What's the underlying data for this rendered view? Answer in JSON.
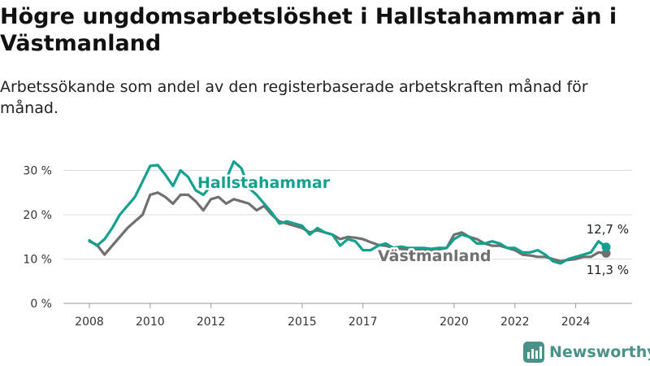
{
  "title": "Högre ungdomsarbetslöshet i Hallstahammar än i Västmanland",
  "subtitle": "Arbetssökande som andel av den registerbaserade arbetskraften månad för månad.",
  "brand": {
    "name": "Newsworthy",
    "icon": "newsworthy-logo-icon"
  },
  "colors": {
    "hallstahammar": "#14a08f",
    "vastmanland": "#707070",
    "grid": "#dcdcdc"
  },
  "chart_data": {
    "type": "line",
    "title": "Högre ungdomsarbetslöshet i Hallstahammar än i Västmanland",
    "subtitle": "Arbetssökande som andel av den registerbaserade arbetskraften månad för månad.",
    "xlabel": "",
    "ylabel": "",
    "x_range": [
      2008,
      2025
    ],
    "ylim": [
      0,
      33
    ],
    "y_ticks": [
      0,
      10,
      20,
      30
    ],
    "y_tick_labels": [
      "0 %",
      "10 %",
      "20 %",
      "30 %"
    ],
    "x_ticks": [
      2008,
      2010,
      2012,
      2015,
      2017,
      2020,
      2022,
      2024
    ],
    "x_tick_labels": [
      "2008",
      "2010",
      "2012",
      "2015",
      "2017",
      "2020",
      "2022",
      "2024"
    ],
    "grid": true,
    "legend": "inline labels",
    "series": [
      {
        "name": "Hallstahammar",
        "color": "#14a08f",
        "end_label": "12,7 %",
        "points": [
          [
            2008.0,
            14.2
          ],
          [
            2008.25,
            13.0
          ],
          [
            2008.5,
            14.5
          ],
          [
            2008.75,
            17.0
          ],
          [
            2009.0,
            20.0
          ],
          [
            2009.25,
            22.0
          ],
          [
            2009.5,
            24.0
          ],
          [
            2009.75,
            27.5
          ],
          [
            2010.0,
            31.0
          ],
          [
            2010.25,
            31.2
          ],
          [
            2010.5,
            29.0
          ],
          [
            2010.75,
            26.5
          ],
          [
            2011.0,
            30.0
          ],
          [
            2011.25,
            28.5
          ],
          [
            2011.5,
            25.5
          ],
          [
            2011.75,
            24.5
          ],
          [
            2012.0,
            26.5
          ],
          [
            2012.25,
            27.0
          ],
          [
            2012.5,
            28.0
          ],
          [
            2012.75,
            32.0
          ],
          [
            2013.0,
            30.5
          ],
          [
            2013.25,
            26.0
          ],
          [
            2013.5,
            24.5
          ],
          [
            2013.75,
            22.5
          ],
          [
            2014.0,
            20.5
          ],
          [
            2014.25,
            18.0
          ],
          [
            2014.5,
            18.5
          ],
          [
            2014.75,
            18.0
          ],
          [
            2015.0,
            17.5
          ],
          [
            2015.25,
            15.5
          ],
          [
            2015.5,
            17.0
          ],
          [
            2015.75,
            16.0
          ],
          [
            2016.0,
            15.5
          ],
          [
            2016.25,
            13.0
          ],
          [
            2016.5,
            14.5
          ],
          [
            2016.75,
            14.0
          ],
          [
            2017.0,
            12.0
          ],
          [
            2017.25,
            12.0
          ],
          [
            2017.5,
            13.0
          ],
          [
            2017.75,
            13.5
          ],
          [
            2018.0,
            12.5
          ],
          [
            2018.25,
            12.8
          ],
          [
            2018.5,
            12.5
          ],
          [
            2018.75,
            12.5
          ],
          [
            2019.0,
            12.5
          ],
          [
            2019.25,
            12.3
          ],
          [
            2019.5,
            12.5
          ],
          [
            2019.75,
            12.5
          ],
          [
            2020.0,
            14.5
          ],
          [
            2020.25,
            15.5
          ],
          [
            2020.5,
            15.0
          ],
          [
            2020.75,
            13.5
          ],
          [
            2021.0,
            13.5
          ],
          [
            2021.25,
            14.0
          ],
          [
            2021.5,
            13.5
          ],
          [
            2021.75,
            12.5
          ],
          [
            2022.0,
            12.5
          ],
          [
            2022.25,
            11.5
          ],
          [
            2022.5,
            11.5
          ],
          [
            2022.75,
            12.0
          ],
          [
            2023.0,
            11.0
          ],
          [
            2023.25,
            9.5
          ],
          [
            2023.5,
            9.0
          ],
          [
            2023.75,
            10.0
          ],
          [
            2024.0,
            10.5
          ],
          [
            2024.25,
            11.0
          ],
          [
            2024.5,
            11.5
          ],
          [
            2024.75,
            14.0
          ],
          [
            2025.0,
            12.7
          ]
        ]
      },
      {
        "name": "Västmanland",
        "color": "#707070",
        "end_label": "11,3 %",
        "points": [
          [
            2008.0,
            14.0
          ],
          [
            2008.25,
            13.2
          ],
          [
            2008.5,
            11.0
          ],
          [
            2008.75,
            13.0
          ],
          [
            2009.0,
            15.0
          ],
          [
            2009.25,
            17.0
          ],
          [
            2009.5,
            18.5
          ],
          [
            2009.75,
            20.0
          ],
          [
            2010.0,
            24.5
          ],
          [
            2010.25,
            25.0
          ],
          [
            2010.5,
            24.0
          ],
          [
            2010.75,
            22.5
          ],
          [
            2011.0,
            24.5
          ],
          [
            2011.25,
            24.5
          ],
          [
            2011.5,
            23.0
          ],
          [
            2011.75,
            21.0
          ],
          [
            2012.0,
            23.5
          ],
          [
            2012.25,
            24.0
          ],
          [
            2012.5,
            22.5
          ],
          [
            2012.75,
            23.5
          ],
          [
            2013.0,
            23.0
          ],
          [
            2013.25,
            22.5
          ],
          [
            2013.5,
            21.0
          ],
          [
            2013.75,
            22.0
          ],
          [
            2014.0,
            20.0
          ],
          [
            2014.25,
            18.5
          ],
          [
            2014.5,
            18.0
          ],
          [
            2014.75,
            17.5
          ],
          [
            2015.0,
            17.0
          ],
          [
            2015.25,
            16.0
          ],
          [
            2015.5,
            16.5
          ],
          [
            2015.75,
            16.0
          ],
          [
            2016.0,
            15.5
          ],
          [
            2016.25,
            14.5
          ],
          [
            2016.5,
            15.0
          ],
          [
            2016.75,
            14.8
          ],
          [
            2017.0,
            14.5
          ],
          [
            2017.25,
            13.8
          ],
          [
            2017.5,
            13.2
          ],
          [
            2017.75,
            13.0
          ],
          [
            2018.0,
            12.5
          ],
          [
            2018.25,
            12.3
          ],
          [
            2018.5,
            12.0
          ],
          [
            2018.75,
            12.0
          ],
          [
            2019.0,
            12.0
          ],
          [
            2019.25,
            12.0
          ],
          [
            2019.5,
            12.2
          ],
          [
            2019.75,
            12.5
          ],
          [
            2020.0,
            15.5
          ],
          [
            2020.25,
            16.0
          ],
          [
            2020.5,
            15.0
          ],
          [
            2020.75,
            14.5
          ],
          [
            2021.0,
            13.5
          ],
          [
            2021.25,
            13.0
          ],
          [
            2021.5,
            13.0
          ],
          [
            2021.75,
            12.5
          ],
          [
            2022.0,
            12.0
          ],
          [
            2022.25,
            11.0
          ],
          [
            2022.5,
            10.8
          ],
          [
            2022.75,
            10.5
          ],
          [
            2023.0,
            10.5
          ],
          [
            2023.25,
            10.0
          ],
          [
            2023.5,
            9.5
          ],
          [
            2023.75,
            9.8
          ],
          [
            2024.0,
            10.0
          ],
          [
            2024.25,
            10.5
          ],
          [
            2024.5,
            10.5
          ],
          [
            2024.75,
            11.5
          ],
          [
            2025.0,
            11.3
          ]
        ]
      }
    ]
  }
}
